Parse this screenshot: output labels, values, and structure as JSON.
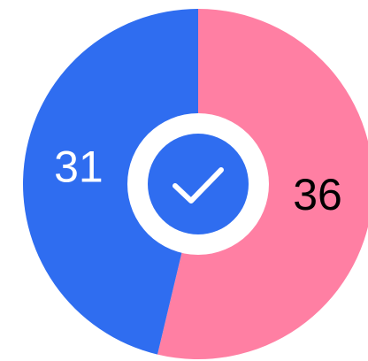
{
  "chart_data": {
    "type": "pie",
    "values": [
      36,
      31
    ],
    "colors": [
      "#ff7fa3",
      "#2f6df0"
    ],
    "label_colors": [
      "#000000",
      "#ffffff"
    ],
    "start_angle": 0,
    "direction": "clockwise",
    "center_icon": "check"
  }
}
